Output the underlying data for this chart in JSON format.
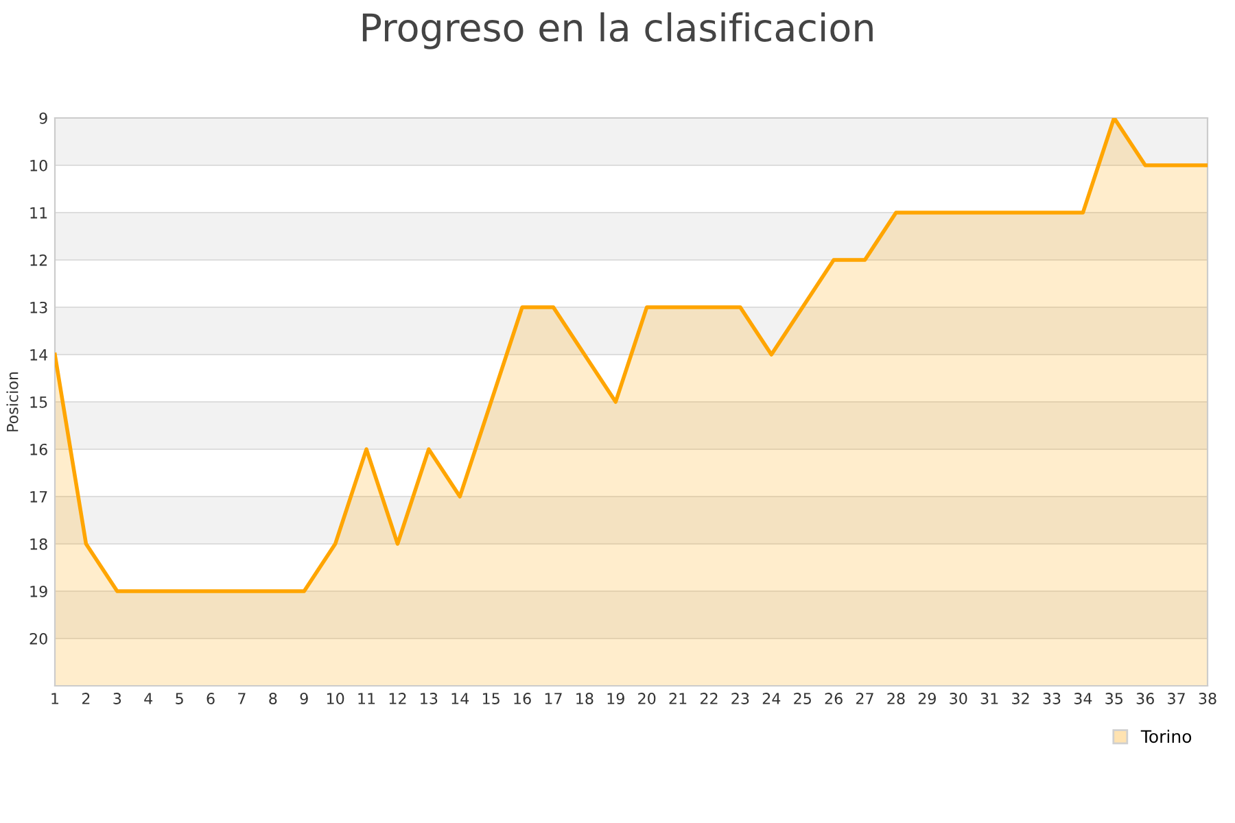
{
  "chart_data": {
    "type": "area",
    "title": "Progreso en la clasificacion",
    "ylabel": "Posicion",
    "x": [
      1,
      2,
      3,
      4,
      5,
      6,
      7,
      8,
      9,
      10,
      11,
      12,
      13,
      14,
      15,
      16,
      17,
      18,
      19,
      20,
      21,
      22,
      23,
      24,
      25,
      26,
      27,
      28,
      29,
      30,
      31,
      32,
      33,
      34,
      35,
      36,
      37,
      38
    ],
    "series": [
      {
        "name": "Torino",
        "color": "#ffa500",
        "values": [
          14,
          18,
          19,
          19,
          19,
          19,
          19,
          19,
          19,
          18,
          16,
          18,
          16,
          17,
          15,
          13,
          13,
          14,
          15,
          13,
          13,
          13,
          13,
          14,
          13,
          12,
          12,
          11,
          11,
          11,
          11,
          11,
          11,
          11,
          9,
          10,
          10,
          10
        ]
      }
    ],
    "xlim": [
      1,
      38
    ],
    "xticks": [
      1,
      2,
      3,
      4,
      5,
      6,
      7,
      8,
      9,
      10,
      11,
      12,
      13,
      14,
      15,
      16,
      17,
      18,
      19,
      20,
      21,
      22,
      23,
      24,
      25,
      26,
      27,
      28,
      29,
      30,
      31,
      32,
      33,
      34,
      35,
      36,
      37,
      38
    ],
    "ylim": [
      21,
      9
    ],
    "yticks": [
      9,
      10,
      11,
      12,
      13,
      14,
      15,
      16,
      17,
      18,
      19,
      20
    ],
    "grid": "y",
    "legend": "bottom right"
  }
}
